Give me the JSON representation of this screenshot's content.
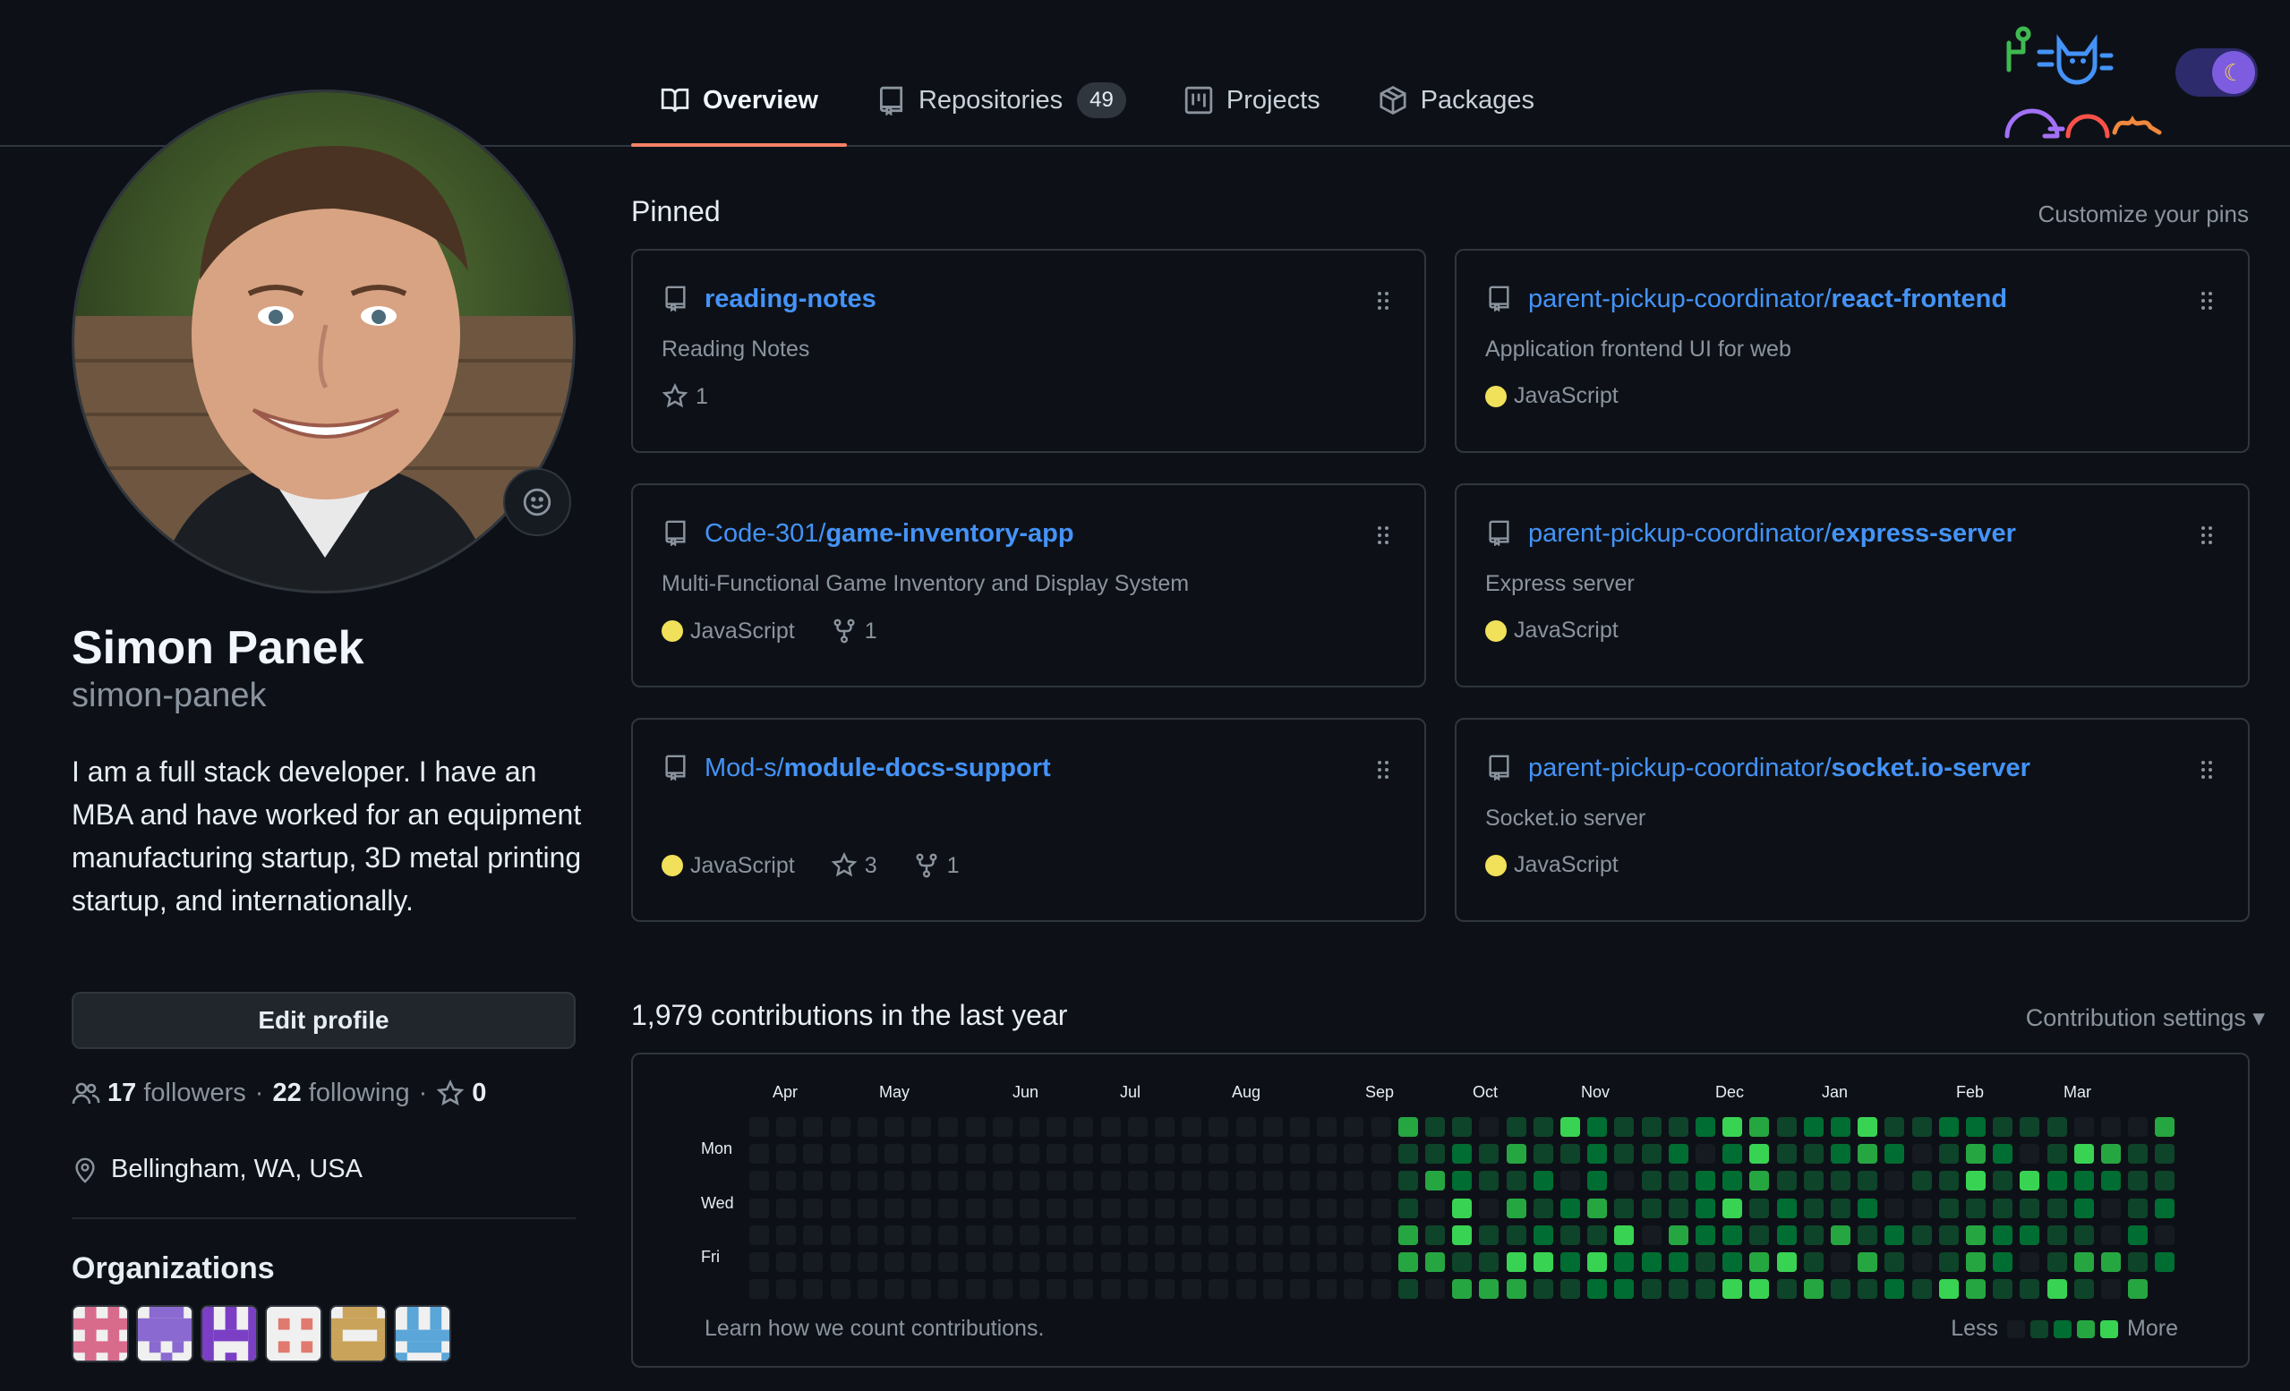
{
  "tabs": [
    {
      "label": "Overview",
      "icon": "book-icon",
      "active": true
    },
    {
      "label": "Repositories",
      "icon": "repo-icon",
      "count": "49"
    },
    {
      "label": "Projects",
      "icon": "project-icon"
    },
    {
      "label": "Packages",
      "icon": "package-icon"
    }
  ],
  "profile": {
    "name": "Simon Panek",
    "username": "simon-panek",
    "bio": "I am a full stack developer. I have an MBA and have worked for an equipment manufacturing startup, 3D metal printing startup, and internationally.",
    "edit_label": "Edit profile",
    "followers": "17",
    "followers_label": "followers",
    "following": "22",
    "following_label": "following",
    "stars": "0",
    "sep": "·",
    "location": "Bellingham, WA, USA",
    "orgs_heading": "Organizations"
  },
  "pinned": {
    "title": "Pinned",
    "customize": "Customize your pins",
    "cards": [
      {
        "owner": "",
        "repo": "reading-notes",
        "desc": "Reading Notes",
        "lang": "",
        "stars": "1",
        "forks": ""
      },
      {
        "owner": "parent-pickup-coordinator/",
        "repo": "react-frontend",
        "desc": "Application frontend UI for web",
        "lang": "JavaScript",
        "stars": "",
        "forks": ""
      },
      {
        "owner": "Code-301/",
        "repo": "game-inventory-app",
        "desc": "Multi-Functional Game Inventory and Display System",
        "lang": "JavaScript",
        "stars": "",
        "forks": "1"
      },
      {
        "owner": "parent-pickup-coordinator/",
        "repo": "express-server",
        "desc": "Express server",
        "lang": "JavaScript",
        "stars": "",
        "forks": ""
      },
      {
        "owner": "Mod-s/",
        "repo": "module-docs-support",
        "desc": "",
        "lang": "JavaScript",
        "stars": "3",
        "forks": "1"
      },
      {
        "owner": "parent-pickup-coordinator/",
        "repo": "socket.io-server",
        "desc": "Socket.io server",
        "lang": "JavaScript",
        "stars": "",
        "forks": ""
      }
    ]
  },
  "contributions": {
    "title": "1,979 contributions in the last year",
    "settings": "Contribution settings ▾",
    "months": [
      "Apr",
      "May",
      "Jun",
      "Jul",
      "Aug",
      "Sep",
      "Oct",
      "Nov",
      "Dec",
      "Jan",
      "Feb",
      "Mar"
    ],
    "days": [
      "Mon",
      "Wed",
      "Fri"
    ],
    "learn": "Learn how we count contributions.",
    "less": "Less",
    "more": "More"
  },
  "colors": {
    "lang_javascript": "#f1e05a",
    "accent": "#f78166",
    "link": "#4493f8",
    "level0": "#161b22",
    "level1": "#0e4429",
    "level2": "#006d32",
    "level3": "#26a641",
    "level4": "#39d353"
  }
}
